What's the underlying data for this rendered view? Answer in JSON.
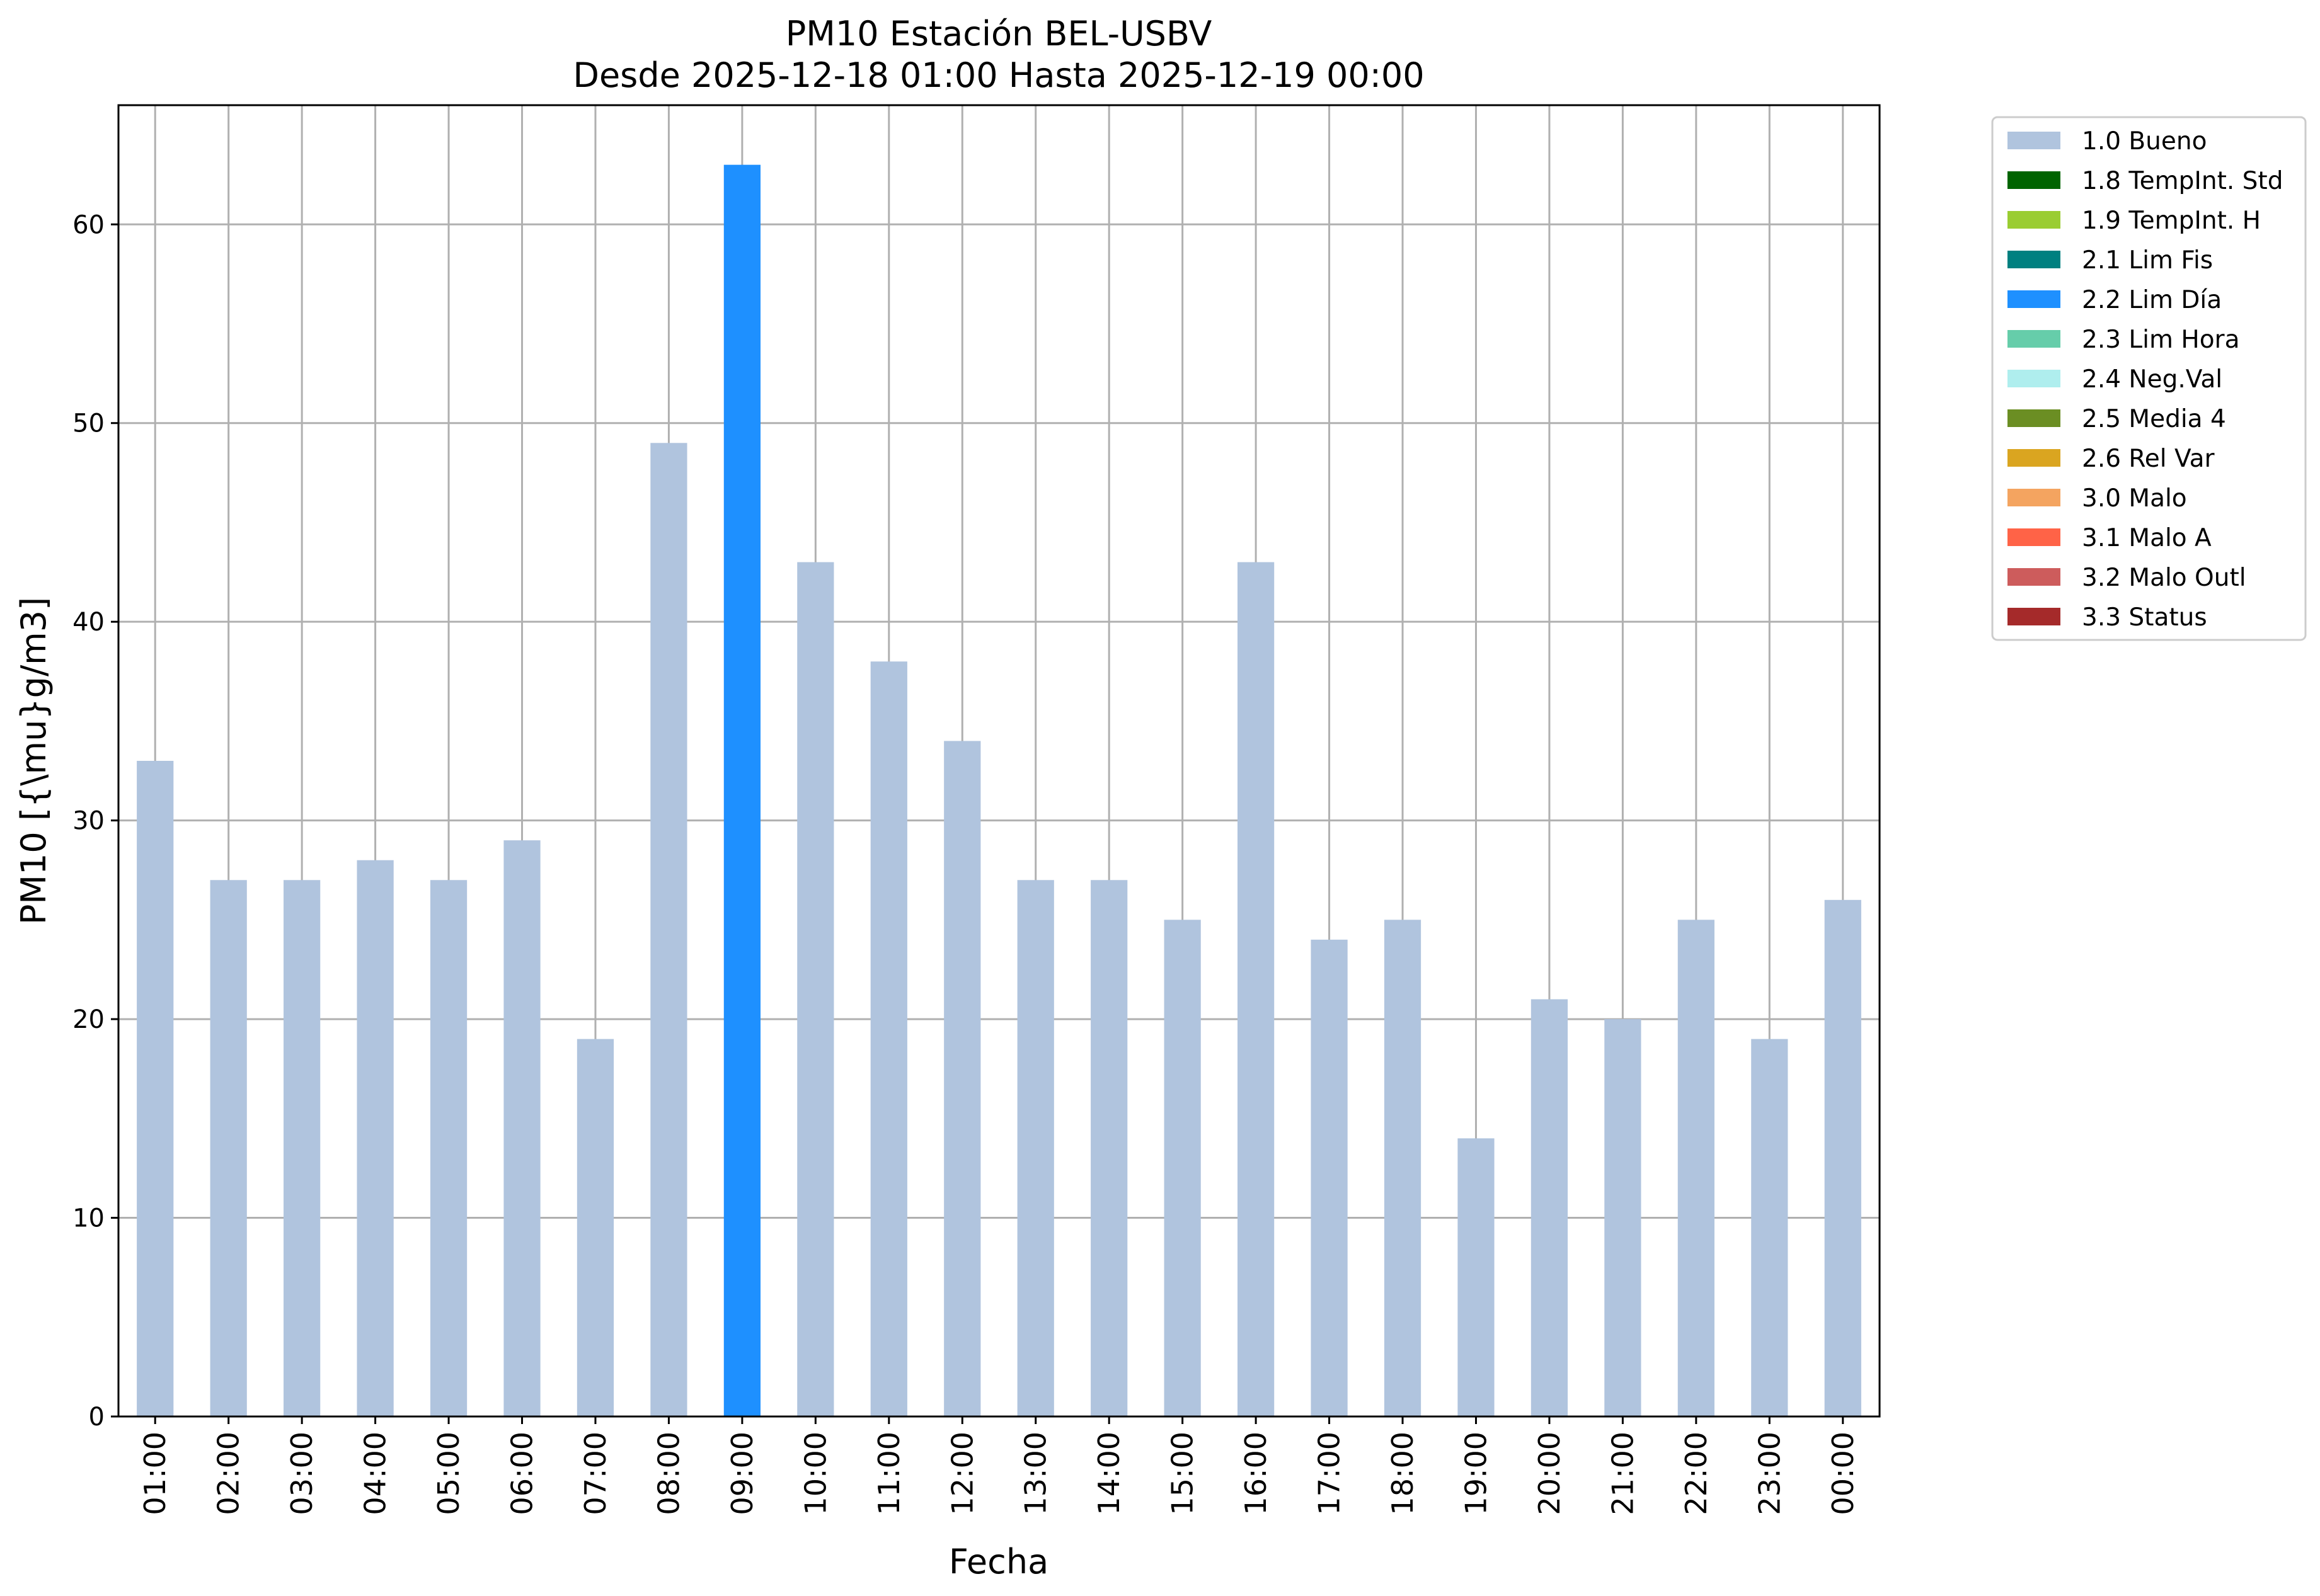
{
  "chart_data": {
    "type": "bar",
    "title": "PM10 Estación BEL-USBV",
    "subtitle": "Desde 2025-12-18 01:00 Hasta 2025-12-19 00:00",
    "xlabel": "Fecha",
    "ylabel": "PM10 [{\\mu}g/m3]",
    "ylim": [
      0,
      66
    ],
    "yticks": [
      0,
      10,
      20,
      30,
      40,
      50,
      60
    ],
    "grid": true,
    "legend_position": "outside-top-right",
    "categories": [
      "01:00",
      "02:00",
      "03:00",
      "04:00",
      "05:00",
      "06:00",
      "07:00",
      "08:00",
      "09:00",
      "10:00",
      "11:00",
      "12:00",
      "13:00",
      "14:00",
      "15:00",
      "16:00",
      "17:00",
      "18:00",
      "19:00",
      "20:00",
      "21:00",
      "22:00",
      "23:00",
      "00:00"
    ],
    "values": [
      33,
      27,
      27,
      28,
      27,
      29,
      19,
      49,
      63,
      43,
      38,
      34,
      27,
      27,
      25,
      43,
      24,
      25,
      14,
      21,
      20,
      25,
      19,
      26
    ],
    "flags": [
      "1.0 Bueno",
      "1.0 Bueno",
      "1.0 Bueno",
      "1.0 Bueno",
      "1.0 Bueno",
      "1.0 Bueno",
      "1.0 Bueno",
      "1.0 Bueno",
      "2.2 Lim Día",
      "1.0 Bueno",
      "1.0 Bueno",
      "1.0 Bueno",
      "1.0 Bueno",
      "1.0 Bueno",
      "1.0 Bueno",
      "1.0 Bueno",
      "1.0 Bueno",
      "1.0 Bueno",
      "1.0 Bueno",
      "1.0 Bueno",
      "1.0 Bueno",
      "1.0 Bueno",
      "1.0 Bueno",
      "1.0 Bueno"
    ],
    "legend": [
      {
        "label": "1.0 Bueno",
        "color": "#b0c4de"
      },
      {
        "label": "1.8 TempInt. Std",
        "color": "#006400"
      },
      {
        "label": "1.9 TempInt. H",
        "color": "#9acd32"
      },
      {
        "label": "2.1 Lim Fis",
        "color": "#008080"
      },
      {
        "label": "2.2 Lim Día",
        "color": "#1e90ff"
      },
      {
        "label": "2.3 Lim Hora",
        "color": "#66cdaa"
      },
      {
        "label": "2.4 Neg.Val",
        "color": "#afeeee"
      },
      {
        "label": "2.5 Media 4",
        "color": "#6b8e23"
      },
      {
        "label": "2.6 Rel Var",
        "color": "#daa520"
      },
      {
        "label": "3.0 Malo",
        "color": "#f4a460"
      },
      {
        "label": "3.1 Malo A",
        "color": "#ff6347"
      },
      {
        "label": "3.2 Malo Outl",
        "color": "#cd5c5c"
      },
      {
        "label": "3.3 Status",
        "color": "#a52a2a"
      }
    ]
  }
}
